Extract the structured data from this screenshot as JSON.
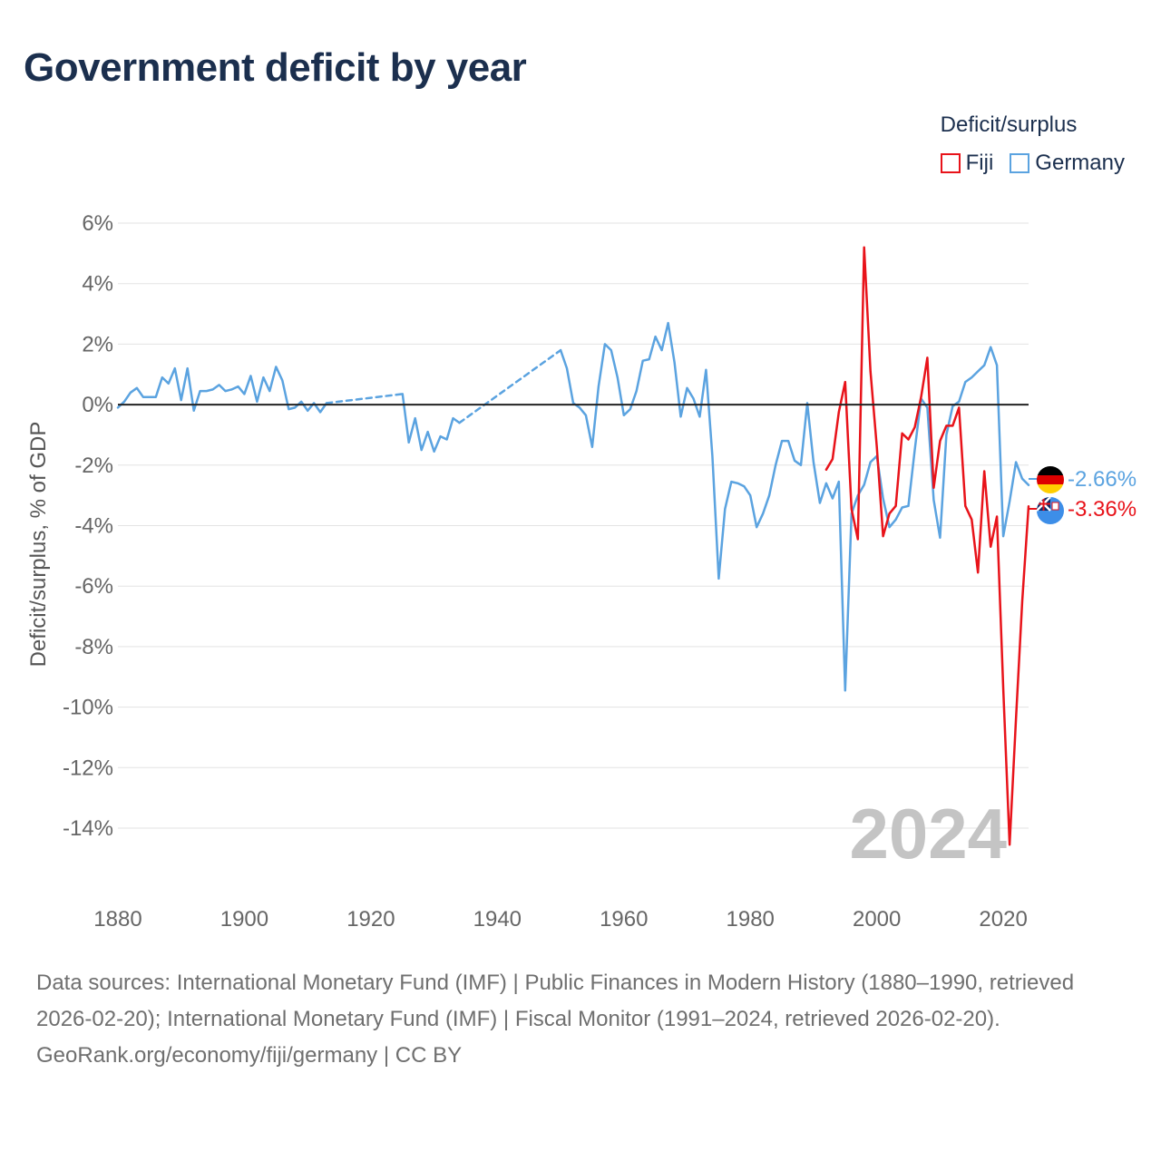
{
  "title": "Government deficit by year",
  "legend": {
    "title": "Deficit/surplus",
    "items": [
      {
        "name": "Fiji",
        "color": "#e8131a"
      },
      {
        "name": "Germany",
        "color": "#5ba3e0"
      }
    ]
  },
  "year_label": "2024",
  "end_labels": [
    {
      "country": "Germany",
      "text": "-2.66%",
      "value": -2.66,
      "color": "#5ba3e0",
      "icon": "germany-flag-icon"
    },
    {
      "country": "Fiji",
      "text": "-3.36%",
      "value": -3.36,
      "color": "#e8131a",
      "icon": "fiji-flag-icon"
    }
  ],
  "footer": {
    "sources": "Data sources: International Monetary Fund (IMF) | Public Finances in Modern History (1880–1990, retrieved 2026-02-20); International Monetary Fund (IMF) | Fiscal Monitor (1991–2024, retrieved 2026-02-20).",
    "credit": "GeoRank.org/economy/fiji/germany | CC BY"
  },
  "chart_data": {
    "type": "line",
    "title": "Government deficit by year",
    "xlabel": "",
    "ylabel": "Deficit/surplus, % of GDP",
    "xlim": [
      1880,
      2024
    ],
    "ylim": [
      -16,
      6.5
    ],
    "xticks": [
      1880,
      1900,
      1920,
      1940,
      1960,
      1980,
      2000,
      2020
    ],
    "xtick_labels": [
      "1880",
      "1900",
      "1920",
      "1940",
      "1960",
      "1980",
      "2000",
      "2020"
    ],
    "yticks": [
      6,
      4,
      2,
      0,
      -2,
      -4,
      -6,
      -8,
      -10,
      -12,
      -14
    ],
    "ytick_labels": [
      "6%",
      "4%",
      "2%",
      "0%",
      "-2%",
      "-4%",
      "-6%",
      "-8%",
      "-10%",
      "-12%",
      "-14%"
    ],
    "grid": true,
    "legend_position": "top-right",
    "series": [
      {
        "name": "Germany",
        "color": "#5ba3e0",
        "segments": [
          {
            "style": "solid",
            "points": [
              [
                1880,
                -0.1
              ],
              [
                1881,
                0.1
              ],
              [
                1882,
                0.4
              ],
              [
                1883,
                0.55
              ],
              [
                1884,
                0.25
              ],
              [
                1885,
                0.25
              ],
              [
                1886,
                0.25
              ],
              [
                1887,
                0.9
              ],
              [
                1888,
                0.7
              ],
              [
                1889,
                1.2
              ],
              [
                1890,
                0.15
              ],
              [
                1891,
                1.2
              ],
              [
                1892,
                -0.2
              ],
              [
                1893,
                0.45
              ],
              [
                1894,
                0.45
              ],
              [
                1895,
                0.5
              ],
              [
                1896,
                0.65
              ],
              [
                1897,
                0.45
              ],
              [
                1898,
                0.5
              ],
              [
                1899,
                0.6
              ],
              [
                1900,
                0.35
              ],
              [
                1901,
                0.95
              ],
              [
                1902,
                0.1
              ],
              [
                1903,
                0.9
              ],
              [
                1904,
                0.45
              ],
              [
                1905,
                1.25
              ],
              [
                1906,
                0.8
              ],
              [
                1907,
                -0.15
              ],
              [
                1908,
                -0.1
              ],
              [
                1909,
                0.1
              ],
              [
                1910,
                -0.2
              ],
              [
                1911,
                0.05
              ],
              [
                1912,
                -0.25
              ],
              [
                1913,
                0.05
              ]
            ]
          },
          {
            "style": "dashed",
            "points": [
              [
                1913,
                0.05
              ],
              [
                1925,
                0.35
              ]
            ]
          },
          {
            "style": "solid",
            "points": [
              [
                1925,
                0.35
              ],
              [
                1926,
                -1.25
              ],
              [
                1927,
                -0.45
              ],
              [
                1928,
                -1.5
              ],
              [
                1929,
                -0.9
              ],
              [
                1930,
                -1.55
              ],
              [
                1931,
                -1.05
              ],
              [
                1932,
                -1.15
              ],
              [
                1933,
                -0.45
              ],
              [
                1934,
                -0.6
              ]
            ]
          },
          {
            "style": "dashed",
            "points": [
              [
                1934,
                -0.6
              ],
              [
                1950,
                1.8
              ]
            ]
          },
          {
            "style": "solid",
            "points": [
              [
                1950,
                1.8
              ],
              [
                1951,
                1.2
              ],
              [
                1952,
                0.05
              ],
              [
                1953,
                -0.1
              ],
              [
                1954,
                -0.35
              ],
              [
                1955,
                -1.4
              ],
              [
                1956,
                0.6
              ],
              [
                1957,
                2.0
              ],
              [
                1958,
                1.8
              ],
              [
                1959,
                0.9
              ],
              [
                1960,
                -0.35
              ],
              [
                1961,
                -0.15
              ],
              [
                1962,
                0.45
              ],
              [
                1963,
                1.45
              ],
              [
                1964,
                1.5
              ],
              [
                1965,
                2.25
              ],
              [
                1966,
                1.8
              ],
              [
                1967,
                2.7
              ],
              [
                1968,
                1.4
              ],
              [
                1969,
                -0.4
              ],
              [
                1970,
                0.55
              ],
              [
                1971,
                0.2
              ],
              [
                1972,
                -0.4
              ],
              [
                1973,
                1.15
              ],
              [
                1974,
                -1.7
              ],
              [
                1975,
                -5.75
              ],
              [
                1976,
                -3.45
              ],
              [
                1977,
                -2.55
              ],
              [
                1978,
                -2.6
              ],
              [
                1979,
                -2.7
              ],
              [
                1980,
                -3.0
              ],
              [
                1981,
                -4.05
              ],
              [
                1982,
                -3.6
              ],
              [
                1983,
                -3.0
              ],
              [
                1984,
                -2.0
              ],
              [
                1985,
                -1.2
              ],
              [
                1986,
                -1.2
              ],
              [
                1987,
                -1.85
              ],
              [
                1988,
                -2.0
              ],
              [
                1989,
                0.05
              ],
              [
                1990,
                -1.9
              ],
              [
                1991,
                -3.25
              ],
              [
                1992,
                -2.6
              ],
              [
                1993,
                -3.1
              ],
              [
                1994,
                -2.55
              ],
              [
                1995,
                -9.45
              ],
              [
                1996,
                -3.6
              ],
              [
                1997,
                -3.0
              ],
              [
                1998,
                -2.65
              ],
              [
                1999,
                -1.9
              ],
              [
                2000,
                -1.7
              ],
              [
                2001,
                -3.1
              ],
              [
                2002,
                -4.05
              ],
              [
                2003,
                -3.8
              ],
              [
                2004,
                -3.4
              ],
              [
                2005,
                -3.35
              ],
              [
                2006,
                -1.5
              ],
              [
                2007,
                0.2
              ],
              [
                2008,
                -0.1
              ],
              [
                2009,
                -3.15
              ],
              [
                2010,
                -4.4
              ],
              [
                2011,
                -1.0
              ],
              [
                2012,
                -0.05
              ],
              [
                2013,
                0.1
              ],
              [
                2014,
                0.75
              ],
              [
                2015,
                0.9
              ],
              [
                2016,
                1.1
              ],
              [
                2017,
                1.3
              ],
              [
                2018,
                1.9
              ],
              [
                2019,
                1.3
              ],
              [
                2020,
                -4.35
              ],
              [
                2021,
                -3.2
              ],
              [
                2022,
                -1.9
              ],
              [
                2023,
                -2.45
              ],
              [
                2024,
                -2.66
              ]
            ]
          }
        ]
      },
      {
        "name": "Fiji",
        "color": "#e8131a",
        "segments": [
          {
            "style": "solid",
            "points": [
              [
                1992,
                -2.15
              ],
              [
                1993,
                -1.8
              ],
              [
                1994,
                -0.25
              ],
              [
                1995,
                0.75
              ],
              [
                1996,
                -3.45
              ],
              [
                1997,
                -4.45
              ],
              [
                1998,
                5.2
              ],
              [
                1999,
                1.1
              ],
              [
                2000,
                -1.4
              ],
              [
                2001,
                -4.35
              ],
              [
                2002,
                -3.6
              ],
              [
                2003,
                -3.35
              ],
              [
                2004,
                -0.95
              ],
              [
                2005,
                -1.15
              ],
              [
                2006,
                -0.75
              ],
              [
                2007,
                0.25
              ],
              [
                2008,
                1.55
              ],
              [
                2009,
                -2.75
              ],
              [
                2010,
                -1.2
              ],
              [
                2011,
                -0.7
              ],
              [
                2012,
                -0.7
              ],
              [
                2013,
                -0.1
              ],
              [
                2014,
                -3.35
              ],
              [
                2015,
                -3.8
              ],
              [
                2016,
                -5.55
              ],
              [
                2017,
                -2.2
              ],
              [
                2018,
                -4.7
              ],
              [
                2019,
                -3.7
              ],
              [
                2020,
                -9.4
              ],
              [
                2021,
                -14.55
              ],
              [
                2022,
                -10.4
              ],
              [
                2023,
                -6.5
              ],
              [
                2024,
                -3.36
              ]
            ]
          }
        ]
      }
    ]
  }
}
